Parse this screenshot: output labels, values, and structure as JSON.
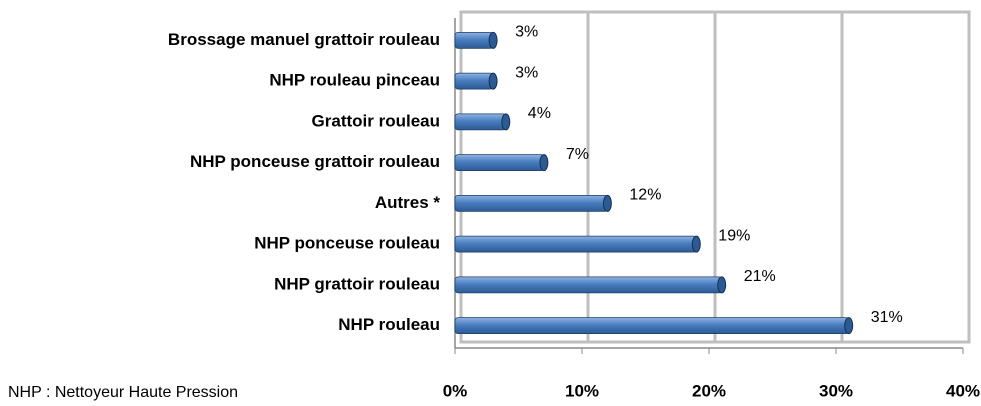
{
  "chart_data": {
    "type": "bar",
    "orientation": "horizontal",
    "categories": [
      "Brossage manuel grattoir rouleau",
      "NHP rouleau pinceau",
      "Grattoir rouleau",
      "NHP ponceuse grattoir rouleau",
      "Autres *",
      "NHP ponceuse rouleau",
      "NHP grattoir rouleau",
      "NHP rouleau"
    ],
    "values": [
      3,
      3,
      4,
      7,
      12,
      19,
      21,
      31
    ],
    "value_labels": [
      "3%",
      "3%",
      "4%",
      "7%",
      "12%",
      "19%",
      "21%",
      "31%"
    ],
    "color": "#4a7ebf",
    "xlim": [
      0,
      40
    ],
    "xticks": [
      {
        "value": 0,
        "label": "0%"
      },
      {
        "value": 10,
        "label": "10%"
      },
      {
        "value": 20,
        "label": "20%"
      },
      {
        "value": 30,
        "label": "30%"
      },
      {
        "value": 40,
        "label": "40%"
      }
    ],
    "grid": true,
    "annotation": "NHP : Nettoyeur Haute Pression"
  }
}
